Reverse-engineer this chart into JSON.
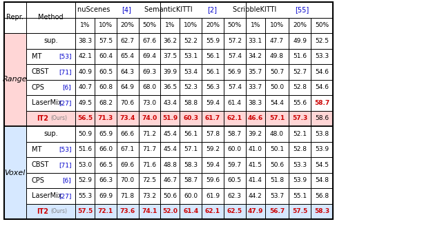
{
  "headers_top": [
    "",
    "Method",
    "nuScenes [4]",
    "",
    "",
    "",
    "SemanticKITTI [2]",
    "",
    "",
    "",
    "ScribbleKITTI [55]",
    "",
    "",
    ""
  ],
  "headers_pct": [
    "",
    "",
    "1%",
    "10%",
    "20%",
    "50%",
    "1%",
    "10%",
    "20%",
    "50%",
    "1%",
    "10%",
    "20%",
    "50%"
  ],
  "range_rows": [
    [
      "sup.",
      "38.3",
      "57.5",
      "62.7",
      "67.6",
      "36.2",
      "52.2",
      "55.9",
      "57.2",
      "33.1",
      "47.7",
      "49.9",
      "52.5"
    ],
    [
      "MT [53]",
      "42.1",
      "60.4",
      "65.4",
      "69.4",
      "37.5",
      "53.1",
      "56.1",
      "57.4",
      "34.2",
      "49.8",
      "51.6",
      "53.3"
    ],
    [
      "CBST [71]",
      "40.9",
      "60.5",
      "64.3",
      "69.3",
      "39.9",
      "53.4",
      "56.1",
      "56.9",
      "35.7",
      "50.7",
      "52.7",
      "54.6"
    ],
    [
      "CPS [6]",
      "40.7",
      "60.8",
      "64.9",
      "68.0",
      "36.5",
      "52.3",
      "56.3",
      "57.4",
      "33.7",
      "50.0",
      "52.8",
      "54.6"
    ],
    [
      "LaserMix [27]",
      "49.5",
      "68.2",
      "70.6",
      "73.0",
      "43.4",
      "58.8",
      "59.4",
      "61.4",
      "38.3",
      "54.4",
      "55.6",
      "58.7"
    ],
    [
      "IT2 (Ours)",
      "56.5",
      "71.3",
      "73.4",
      "74.0",
      "51.9",
      "60.3",
      "61.7",
      "62.1",
      "46.6",
      "57.1",
      "57.3",
      "58.6"
    ]
  ],
  "voxel_rows": [
    [
      "sup.",
      "50.9",
      "65.9",
      "66.6",
      "71.2",
      "45.4",
      "56.1",
      "57.8",
      "58.7",
      "39.2",
      "48.0",
      "52.1",
      "53.8"
    ],
    [
      "MT [53]",
      "51.6",
      "66.0",
      "67.1",
      "71.7",
      "45.4",
      "57.1",
      "59.2",
      "60.0",
      "41.0",
      "50.1",
      "52.8",
      "53.9"
    ],
    [
      "CBST [71]",
      "53.0",
      "66.5",
      "69.6",
      "71.6",
      "48.8",
      "58.3",
      "59.4",
      "59.7",
      "41.5",
      "50.6",
      "53.3",
      "54.5"
    ],
    [
      "CPS [6]",
      "52.9",
      "66.3",
      "70.0",
      "72.5",
      "46.7",
      "58.7",
      "59.6",
      "60.5",
      "41.4",
      "51.8",
      "53.9",
      "54.8"
    ],
    [
      "LaserMix [27]",
      "55.3",
      "69.9",
      "71.8",
      "73.2",
      "50.6",
      "60.0",
      "61.9",
      "62.3",
      "44.2",
      "53.7",
      "55.1",
      "56.8"
    ],
    [
      "IT2 (Ours)",
      "57.5",
      "72.1",
      "73.6",
      "74.1",
      "52.0",
      "61.4",
      "62.1",
      "62.5",
      "47.9",
      "56.7",
      "57.5",
      "58.3"
    ]
  ],
  "range_red_bold": {
    "5": [
      0,
      1,
      2,
      3,
      4,
      5,
      6,
      7,
      8,
      10,
      11
    ],
    "lasermix_red": [
      [
        4,
        11
      ]
    ]
  },
  "voxel_red_bold": {
    "5": [
      0,
      1,
      2,
      3,
      4,
      5,
      6,
      7,
      8,
      9,
      10,
      11
    ]
  },
  "col_refs_blue": {
    "MT": "53",
    "CBST": "71",
    "CPS": "6",
    "LaserMix": "27",
    "nuScenes": "4",
    "SemanticKITTI": "2",
    "ScribbleKITTI": "55"
  },
  "range_bg": "#FFD6D6",
  "voxel_bg": "#D6E8FF",
  "border_color": "#000000",
  "red_color": "#FF0000",
  "blue_color": "#0000FF",
  "header_bg": "#FFFFFF"
}
